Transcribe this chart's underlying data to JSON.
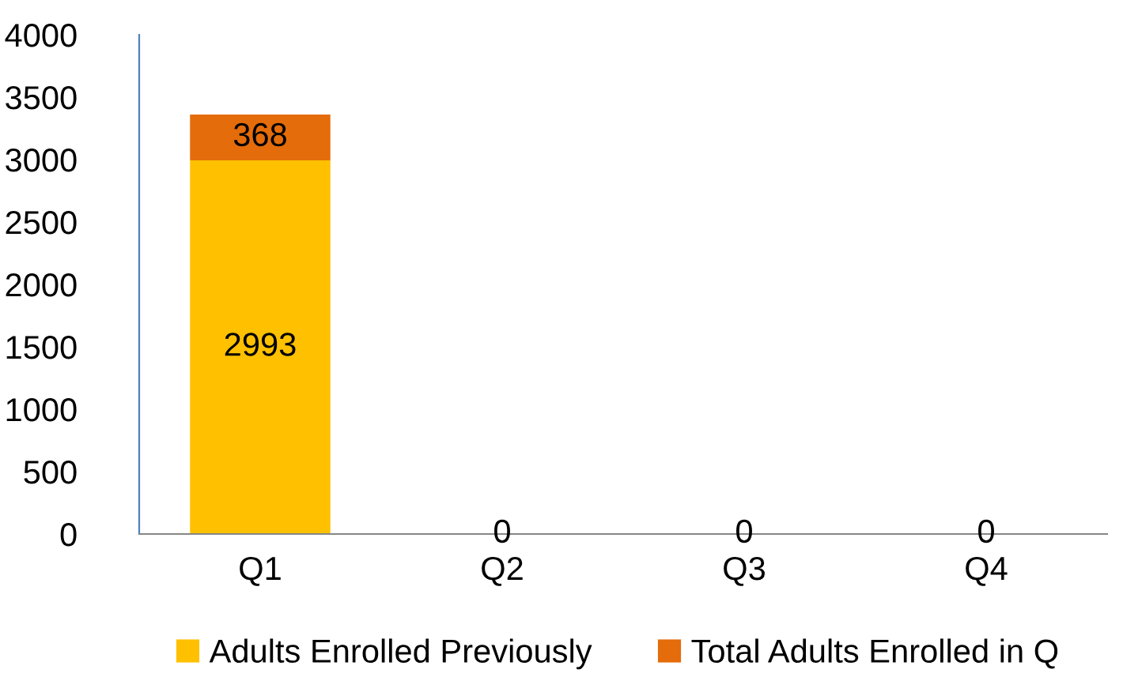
{
  "chart_data": {
    "type": "bar",
    "stacked": true,
    "categories": [
      "Q1",
      "Q2",
      "Q3",
      "Q4"
    ],
    "series": [
      {
        "name": "Adults Enrolled Previously",
        "color": "#ffc000",
        "values": [
          2993,
          0,
          0,
          0
        ],
        "value_labels": [
          "2993",
          null,
          null,
          null
        ]
      },
      {
        "name": "Total Adults Enrolled in Q",
        "color": "#e46c0a",
        "values": [
          368,
          0,
          0,
          0
        ],
        "value_labels": [
          "368",
          "0",
          "0",
          "0"
        ]
      }
    ],
    "ylim": [
      0,
      4000
    ],
    "yticks": [
      0,
      500,
      1000,
      1500,
      2000,
      2500,
      3000,
      3500,
      4000
    ],
    "grid": false,
    "legend": "bottom"
  }
}
